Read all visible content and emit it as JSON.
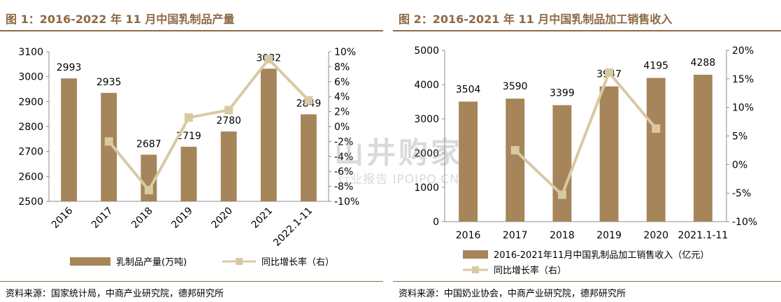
{
  "figures": [
    {
      "title": "图 1：2016-2022 年 11 月中国乳制品产量",
      "source": "资料来源：国家统计局，中商产业研究院，德邦研究所"
    },
    {
      "title": "图 2：2016-2021 年 11 月中国乳制品加工销售收入",
      "source": "资料来源：中国奶业协会，中商产业研究院，德邦研究所"
    }
  ],
  "watermark": {
    "main": "山井购家",
    "sub": "行业报告 IPOIPO.CN"
  },
  "colors": {
    "bar": "#a58559",
    "line": "#d9c9a3",
    "text": "#000000",
    "accent": "#8c6a46",
    "axis": "#8c8c8c"
  },
  "chart_data": [
    {
      "type": "bar",
      "categories": [
        "2016",
        "2017",
        "2018",
        "2019",
        "2020",
        "2021",
        "2022.1-11"
      ],
      "series": [
        {
          "name": "乳制品产量(万吨)",
          "axis": "left",
          "type": "bar",
          "values": [
            2993,
            2935,
            2687,
            2719,
            2780,
            3032,
            2849
          ]
        },
        {
          "name": "同比增长率（右）",
          "axis": "right",
          "type": "line",
          "values": [
            null,
            -2.0,
            -8.5,
            1.2,
            2.2,
            9.0,
            3.5
          ]
        }
      ],
      "data_labels": [
        "2993",
        "2935",
        "2687",
        "2719",
        "2780",
        "3032",
        "2849"
      ],
      "ylim": [
        2500,
        3100
      ],
      "yticks": [
        "2500",
        "2600",
        "2700",
        "2800",
        "2900",
        "3000",
        "3100"
      ],
      "y2lim": [
        -10,
        10
      ],
      "y2ticks": [
        "-10%",
        "-8%",
        "-6%",
        "-4%",
        "-2%",
        "0%",
        "2%",
        "4%",
        "6%",
        "8%",
        "10%"
      ],
      "legend_position": "bottom",
      "grid": false
    },
    {
      "type": "bar",
      "categories": [
        "2016",
        "2017",
        "2018",
        "2019",
        "2020",
        "2021.1-11"
      ],
      "series": [
        {
          "name": "2016-2021年11月中国乳制品加工销售收入（亿元）",
          "axis": "left",
          "type": "bar",
          "values": [
            3504,
            3590,
            3399,
            3947,
            4195,
            4288
          ]
        },
        {
          "name": "同比增长率（右）",
          "axis": "right",
          "type": "line",
          "values": [
            null,
            2.5,
            -5.3,
            16.1,
            6.3,
            null
          ]
        }
      ],
      "data_labels": [
        "3504",
        "3590",
        "3399",
        "3947",
        "4195",
        "4288"
      ],
      "ylim": [
        0,
        5000
      ],
      "yticks": [
        "0",
        "1000",
        "2000",
        "3000",
        "4000",
        "5000"
      ],
      "y2lim": [
        -10,
        20
      ],
      "y2ticks": [
        "-10%",
        "-5%",
        "0%",
        "5%",
        "10%",
        "15%",
        "20%"
      ],
      "legend_position": "bottom",
      "grid": false
    }
  ]
}
